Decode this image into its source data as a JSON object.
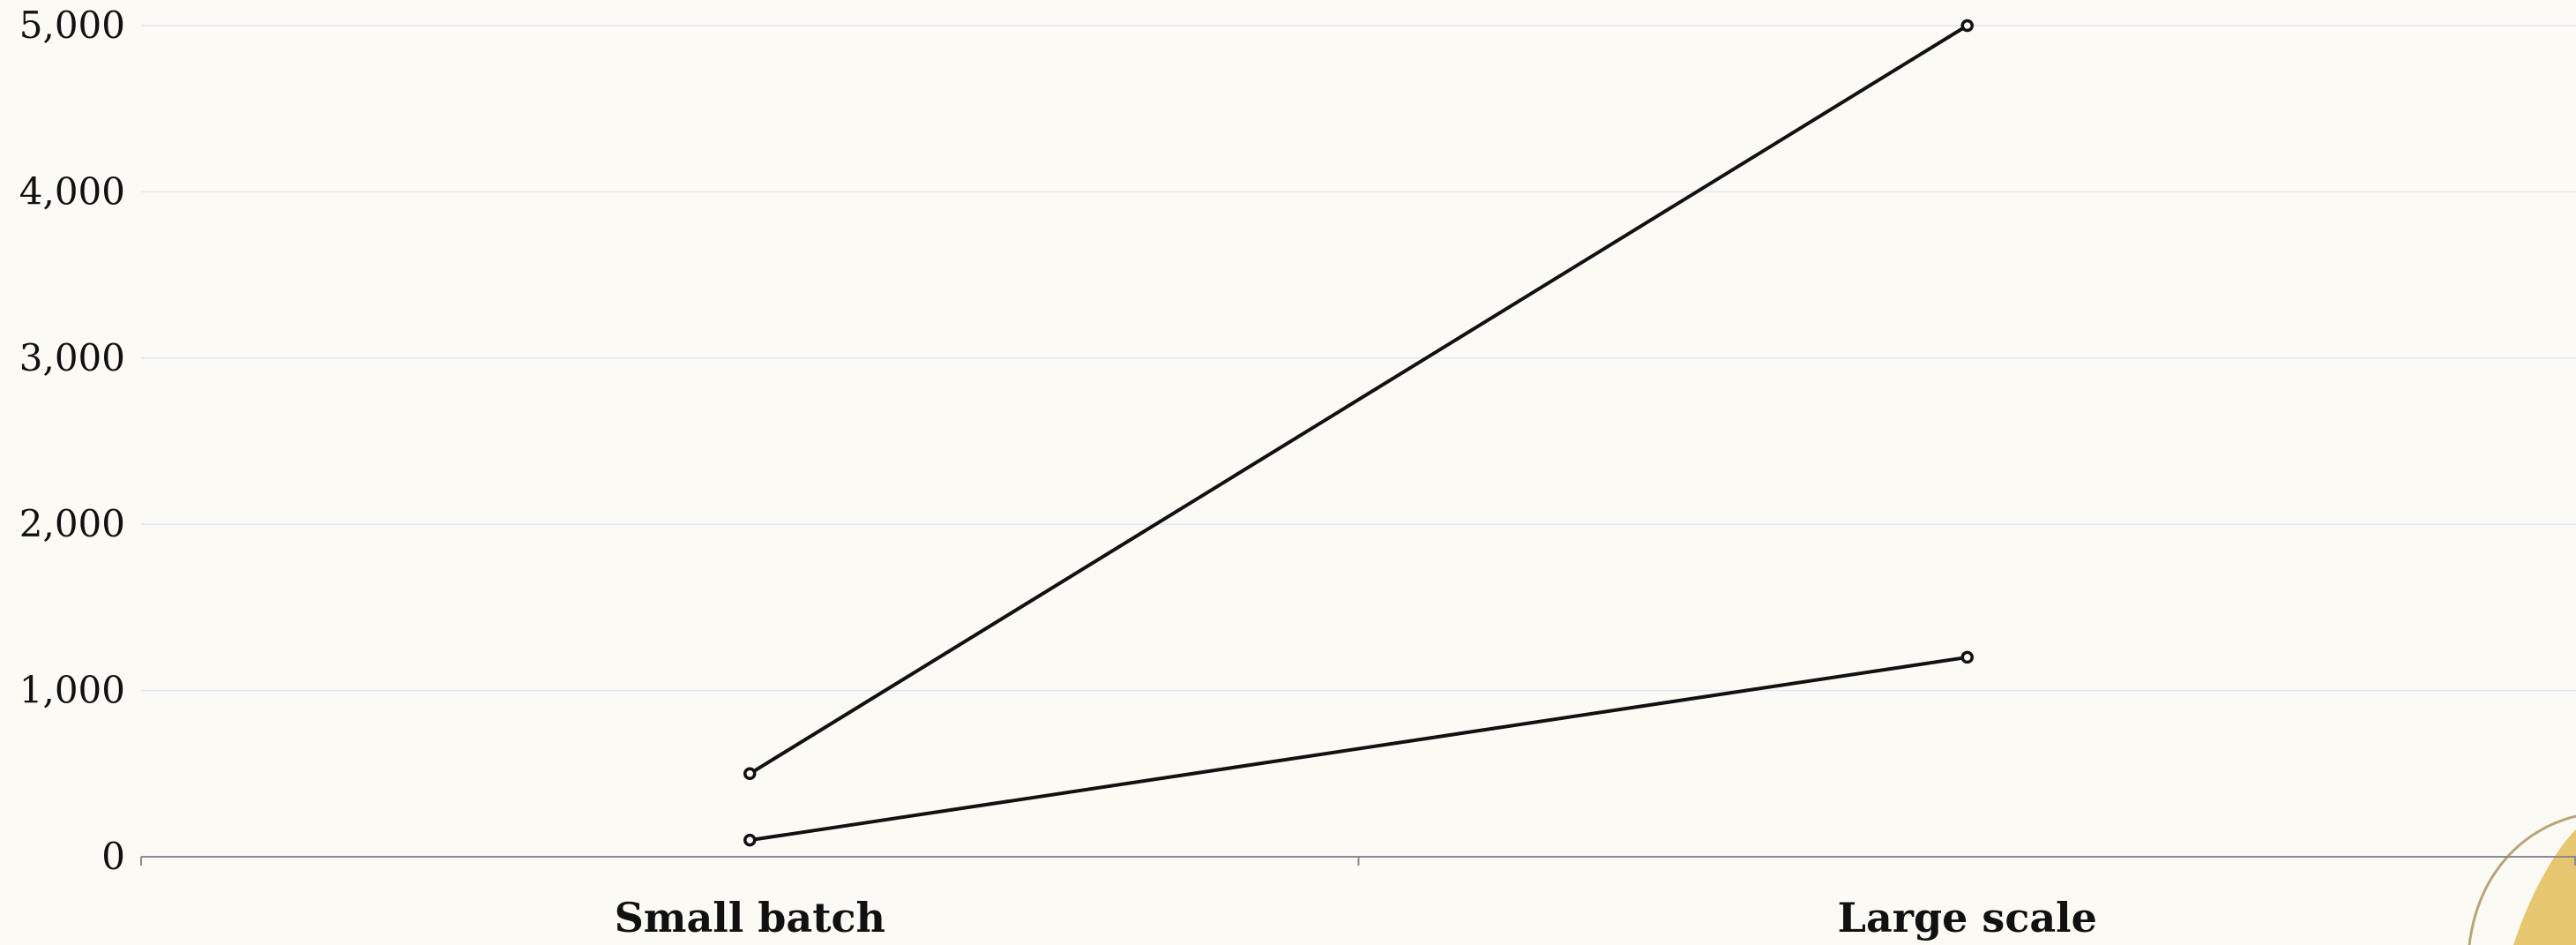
{
  "chart_data": {
    "type": "line",
    "categories": [
      "Small batch",
      "Large scale"
    ],
    "series": [
      {
        "values": [
          500,
          5000
        ]
      },
      {
        "values": [
          100,
          1200
        ]
      }
    ],
    "yticks": [
      "0",
      "1,000",
      "2,000",
      "3,000",
      "4,000",
      "5,000"
    ],
    "ytick_values": [
      0,
      1000,
      2000,
      3000,
      4000,
      5000
    ],
    "ylim": [
      0,
      5000
    ],
    "grid": true,
    "legend": "none",
    "colors": {
      "line": "#111111",
      "grid": "#e3e6ef",
      "axis": "#8a8a92",
      "background": "#fcfaf5",
      "accent": "#e6c66f"
    }
  }
}
